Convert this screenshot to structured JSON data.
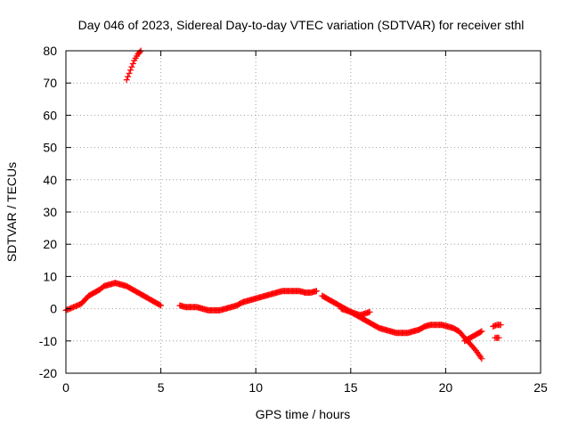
{
  "chart_data": {
    "type": "scatter",
    "title": "Day 046 of 2023, Sidereal Day-to-day VTEC variation (SDTVAR) for receiver sthl",
    "xlabel": "GPS time / hours",
    "ylabel": "SDTVAR / TECUs",
    "xlim": [
      0,
      25
    ],
    "ylim": [
      -20,
      80
    ],
    "xticks": [
      0,
      5,
      10,
      15,
      20,
      25
    ],
    "yticks": [
      -20,
      -10,
      0,
      10,
      20,
      30,
      40,
      50,
      60,
      70,
      80
    ],
    "grid": true,
    "marker": "plus",
    "color": "#ff0000",
    "series": [
      {
        "name": "SDTVAR",
        "segments": [
          {
            "x": [
              3.2,
              3.4,
              3.6,
              3.8,
              3.95
            ],
            "y": [
              71,
              74,
              77,
              79,
              80
            ]
          },
          {
            "x": [
              0.0,
              0.2,
              0.4,
              0.6,
              0.8,
              1.2,
              1.5,
              1.8,
              2.0,
              2.3,
              2.6,
              2.9,
              3.2,
              3.5,
              3.8,
              4.1,
              4.4,
              4.7,
              5.0
            ],
            "y": [
              -0.5,
              0,
              0.5,
              1,
              1.5,
              4,
              5,
              6,
              7,
              7.5,
              8,
              7.5,
              7,
              6,
              5,
              4,
              3,
              2,
              1
            ]
          },
          {
            "x": [
              6.0,
              6.3,
              6.6,
              6.9,
              7.2,
              7.5,
              7.8,
              8.1,
              8.4,
              8.7,
              9.0,
              9.3,
              9.6,
              9.9,
              10.2,
              10.5,
              10.8,
              11.1,
              11.4,
              11.7,
              12.0,
              12.3,
              12.6,
              12.9,
              13.2
            ],
            "y": [
              1,
              0.5,
              0.5,
              0.5,
              0,
              -0.5,
              -0.5,
              -0.5,
              0,
              0.5,
              1,
              2,
              2.5,
              3,
              3.5,
              4,
              4.5,
              5,
              5.5,
              5.5,
              5.5,
              5.5,
              5,
              5,
              5.5
            ]
          },
          {
            "x": [
              13.5,
              13.8,
              14.1,
              14.4,
              14.7,
              15.0,
              15.3,
              15.6,
              15.9,
              16.2,
              16.5,
              16.8,
              17.1,
              17.4,
              17.7,
              18.0,
              18.3,
              18.6,
              18.9,
              19.2,
              19.5,
              19.8,
              20.1,
              20.4,
              20.7,
              21.0,
              21.3,
              21.6,
              21.9
            ],
            "y": [
              4,
              3,
              2,
              1,
              0,
              -1,
              -2,
              -3,
              -4,
              -5,
              -6,
              -6.5,
              -7,
              -7.5,
              -7.5,
              -7.5,
              -7,
              -6.5,
              -5.5,
              -5,
              -5,
              -5,
              -5.5,
              -6,
              -7,
              -9,
              -11,
              -13,
              -15.5
            ]
          },
          {
            "x": [
              14.5,
              15.0,
              15.5,
              16.0
            ],
            "y": [
              0,
              -1,
              -2,
              -1
            ]
          },
          {
            "x": [
              21.0,
              21.3,
              21.6,
              21.9
            ],
            "y": [
              -10,
              -9,
              -8,
              -7
            ]
          },
          {
            "x": [
              22.6,
              22.8
            ],
            "y": [
              -9,
              -9
            ]
          },
          {
            "x": [
              22.5,
              22.7,
              22.9
            ],
            "y": [
              -5.5,
              -5,
              -5
            ]
          }
        ]
      }
    ]
  }
}
